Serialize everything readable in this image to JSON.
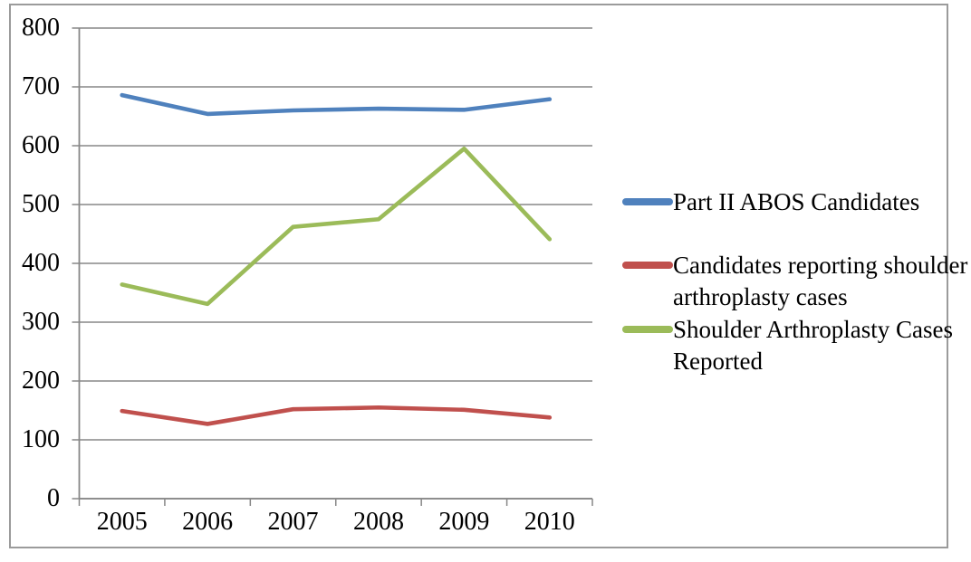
{
  "chart_data": {
    "type": "line",
    "title": "",
    "xlabel": "",
    "ylabel": "",
    "x": [
      "2005",
      "2006",
      "2007",
      "2008",
      "2009",
      "2010"
    ],
    "yticks": [
      0,
      100,
      200,
      300,
      400,
      500,
      600,
      700,
      800
    ],
    "ylim": [
      0,
      800
    ],
    "grid": true,
    "legend_position": "right",
    "series": [
      {
        "name": "Part II ABOS Candidates",
        "color": "#4F81BD",
        "values": [
          686,
          654,
          660,
          663,
          661,
          679
        ]
      },
      {
        "name": "Candidates reporting shoulder arthroplasty cases",
        "color": "#C0504D",
        "values": [
          149,
          127,
          152,
          155,
          151,
          138
        ]
      },
      {
        "name": "Shoulder Arthroplasty Cases Reported",
        "color": "#9BBB59",
        "values": [
          364,
          331,
          462,
          475,
          595,
          441
        ]
      }
    ],
    "axis_color": "#878787",
    "border_color": "#9B9B9B",
    "text_color": "#000000",
    "background": "#FFFFFF"
  }
}
